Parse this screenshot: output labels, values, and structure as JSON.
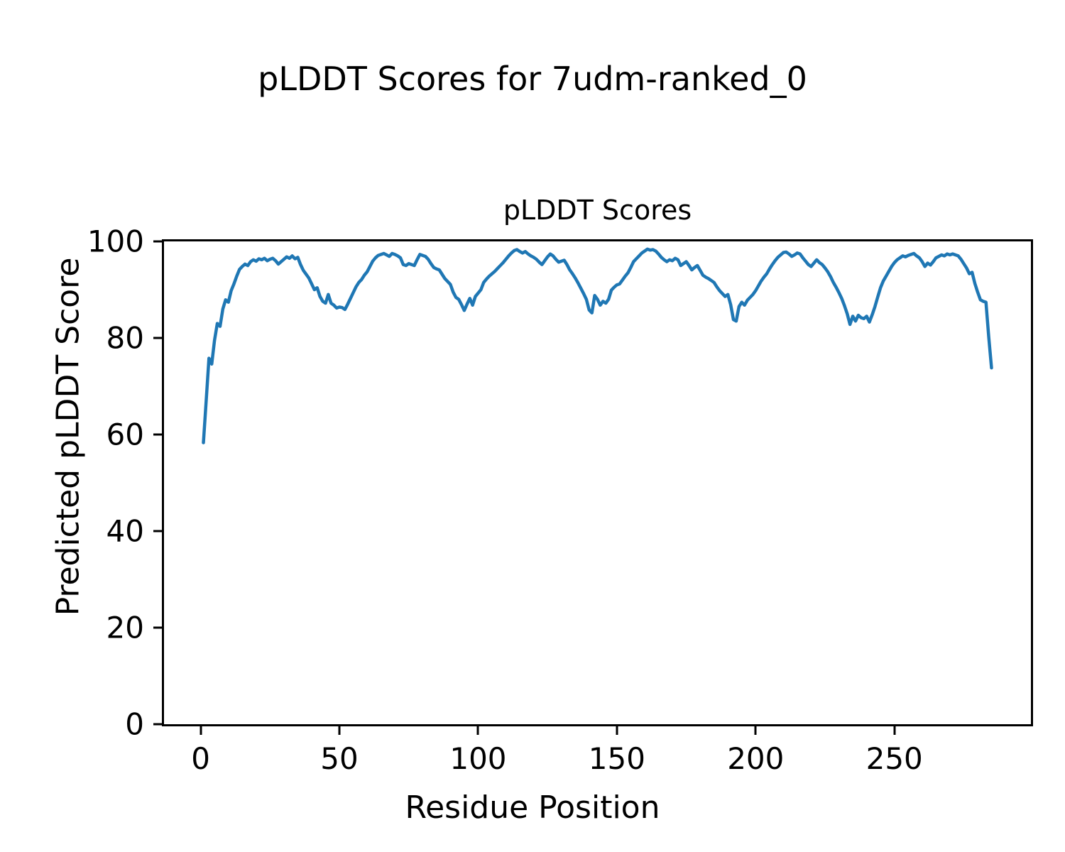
{
  "suptitle": "pLDDT Scores for 7udm-ranked_0",
  "chart_data": {
    "type": "line",
    "title": "pLDDT Scores",
    "xlabel": "Residue Position",
    "ylabel": "Predicted pLDDT Score",
    "xlim": [
      -13.2,
      299.2
    ],
    "ylim": [
      0,
      100
    ],
    "xticks": [
      0,
      50,
      100,
      150,
      200,
      250
    ],
    "yticks": [
      0,
      20,
      40,
      60,
      80,
      100
    ],
    "grid": false,
    "legend": "none",
    "line_color": "#1f77b4",
    "x_start": 1,
    "x_label_meaning": "residue position",
    "values": [
      58.3,
      67.0,
      75.8,
      74.6,
      79.5,
      83.0,
      82.4,
      86.0,
      87.9,
      87.4,
      89.8,
      91.2,
      92.8,
      94.2,
      94.8,
      95.3,
      95.0,
      95.8,
      96.2,
      95.9,
      96.4,
      96.2,
      96.5,
      96.0,
      96.3,
      96.5,
      96.0,
      95.3,
      95.8,
      96.3,
      96.8,
      96.5,
      97.0,
      96.4,
      96.7,
      95.2,
      94.0,
      93.2,
      92.4,
      91.2,
      90.0,
      90.4,
      88.6,
      87.6,
      87.2,
      89.0,
      87.2,
      86.8,
      86.2,
      86.4,
      86.3,
      85.9,
      87.0,
      88.2,
      89.4,
      90.6,
      91.5,
      92.1,
      93.0,
      93.7,
      94.8,
      95.9,
      96.6,
      97.1,
      97.3,
      97.5,
      97.2,
      96.9,
      97.5,
      97.3,
      97.0,
      96.6,
      95.2,
      95.0,
      95.4,
      95.2,
      95.0,
      96.2,
      97.3,
      97.1,
      96.9,
      96.3,
      95.4,
      94.6,
      94.3,
      94.1,
      93.2,
      92.3,
      91.7,
      91.1,
      89.5,
      88.4,
      88.0,
      86.9,
      85.7,
      87.0,
      88.2,
      86.8,
      88.6,
      89.3,
      90.0,
      91.5,
      92.2,
      92.8,
      93.3,
      93.8,
      94.4,
      95.0,
      95.6,
      96.3,
      97.0,
      97.6,
      98.1,
      98.3,
      97.9,
      97.6,
      97.9,
      97.4,
      97.0,
      96.7,
      96.3,
      95.7,
      95.2,
      96.0,
      96.8,
      97.4,
      97.0,
      96.3,
      95.7,
      95.9,
      96.1,
      95.2,
      94.1,
      93.3,
      92.4,
      91.4,
      90.3,
      89.2,
      88.0,
      85.8,
      85.2,
      88.8,
      88.0,
      86.8,
      87.6,
      87.2,
      88.0,
      89.9,
      90.5,
      91.0,
      91.2,
      92.0,
      92.8,
      93.5,
      94.6,
      95.8,
      96.4,
      97.0,
      97.6,
      98.0,
      98.4,
      98.2,
      98.3,
      98.0,
      97.4,
      96.7,
      96.2,
      95.8,
      96.2,
      96.0,
      96.5,
      96.2,
      95.0,
      95.4,
      95.8,
      95.0,
      94.1,
      94.6,
      95.0,
      94.0,
      93.0,
      92.6,
      92.3,
      91.9,
      91.5,
      90.6,
      89.8,
      89.2,
      88.6,
      89.0,
      86.9,
      83.8,
      83.5,
      86.5,
      87.4,
      86.8,
      87.8,
      88.4,
      89.0,
      89.8,
      90.8,
      91.8,
      92.6,
      93.3,
      94.3,
      95.2,
      96.0,
      96.7,
      97.2,
      97.7,
      97.8,
      97.4,
      96.9,
      97.2,
      97.6,
      97.4,
      96.6,
      95.9,
      95.2,
      94.8,
      95.5,
      96.2,
      95.6,
      95.2,
      94.5,
      93.7,
      92.7,
      91.5,
      90.5,
      89.4,
      88.2,
      86.7,
      85.0,
      82.8,
      84.5,
      83.5,
      84.7,
      84.2,
      84.0,
      84.5,
      83.3,
      84.8,
      86.5,
      88.5,
      90.4,
      91.8,
      92.8,
      93.8,
      94.8,
      95.6,
      96.2,
      96.6,
      97.0,
      96.8,
      97.1,
      97.3,
      97.5,
      97.0,
      96.6,
      95.8,
      94.8,
      95.5,
      95.1,
      95.8,
      96.6,
      96.9,
      97.2,
      97.0,
      97.4,
      97.2,
      97.4,
      97.2,
      97.0,
      96.3,
      95.4,
      94.5,
      93.3,
      93.6,
      91.3,
      89.5,
      87.9,
      87.6,
      87.4,
      80.2,
      73.8
    ]
  }
}
